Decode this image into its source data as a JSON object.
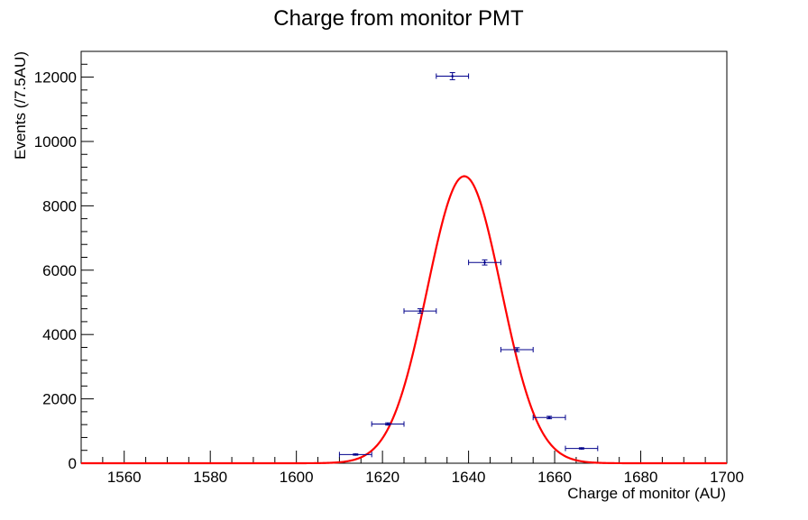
{
  "chart_data": {
    "type": "scatter",
    "title": "Charge from monitor PMT",
    "xlabel": "Charge of monitor (AU)",
    "ylabel": "Events (/7.5AU)",
    "xlim": [
      1550,
      1700
    ],
    "ylim": [
      0,
      12800
    ],
    "x_ticks": [
      1560,
      1580,
      1600,
      1620,
      1640,
      1660,
      1680,
      1700
    ],
    "y_ticks": [
      0,
      2000,
      4000,
      6000,
      8000,
      10000,
      12000
    ],
    "grid": false,
    "legend": "none",
    "series": [
      {
        "kind": "histogram-points-with-errors",
        "color": "#00008b",
        "bin_width": 7.5,
        "points": [
          {
            "x": 1613.75,
            "y": 270,
            "yerr": 20
          },
          {
            "x": 1621.25,
            "y": 1220,
            "yerr": 35
          },
          {
            "x": 1628.75,
            "y": 4730,
            "yerr": 70
          },
          {
            "x": 1636.25,
            "y": 12030,
            "yerr": 110
          },
          {
            "x": 1643.75,
            "y": 6240,
            "yerr": 80
          },
          {
            "x": 1651.25,
            "y": 3530,
            "yerr": 60
          },
          {
            "x": 1658.75,
            "y": 1420,
            "yerr": 38
          },
          {
            "x": 1666.25,
            "y": 460,
            "yerr": 21
          }
        ]
      },
      {
        "kind": "gaussian-fit",
        "color": "#ff0000",
        "amplitude": 8920,
        "mean": 1639,
        "sigma": 8.6
      }
    ]
  }
}
